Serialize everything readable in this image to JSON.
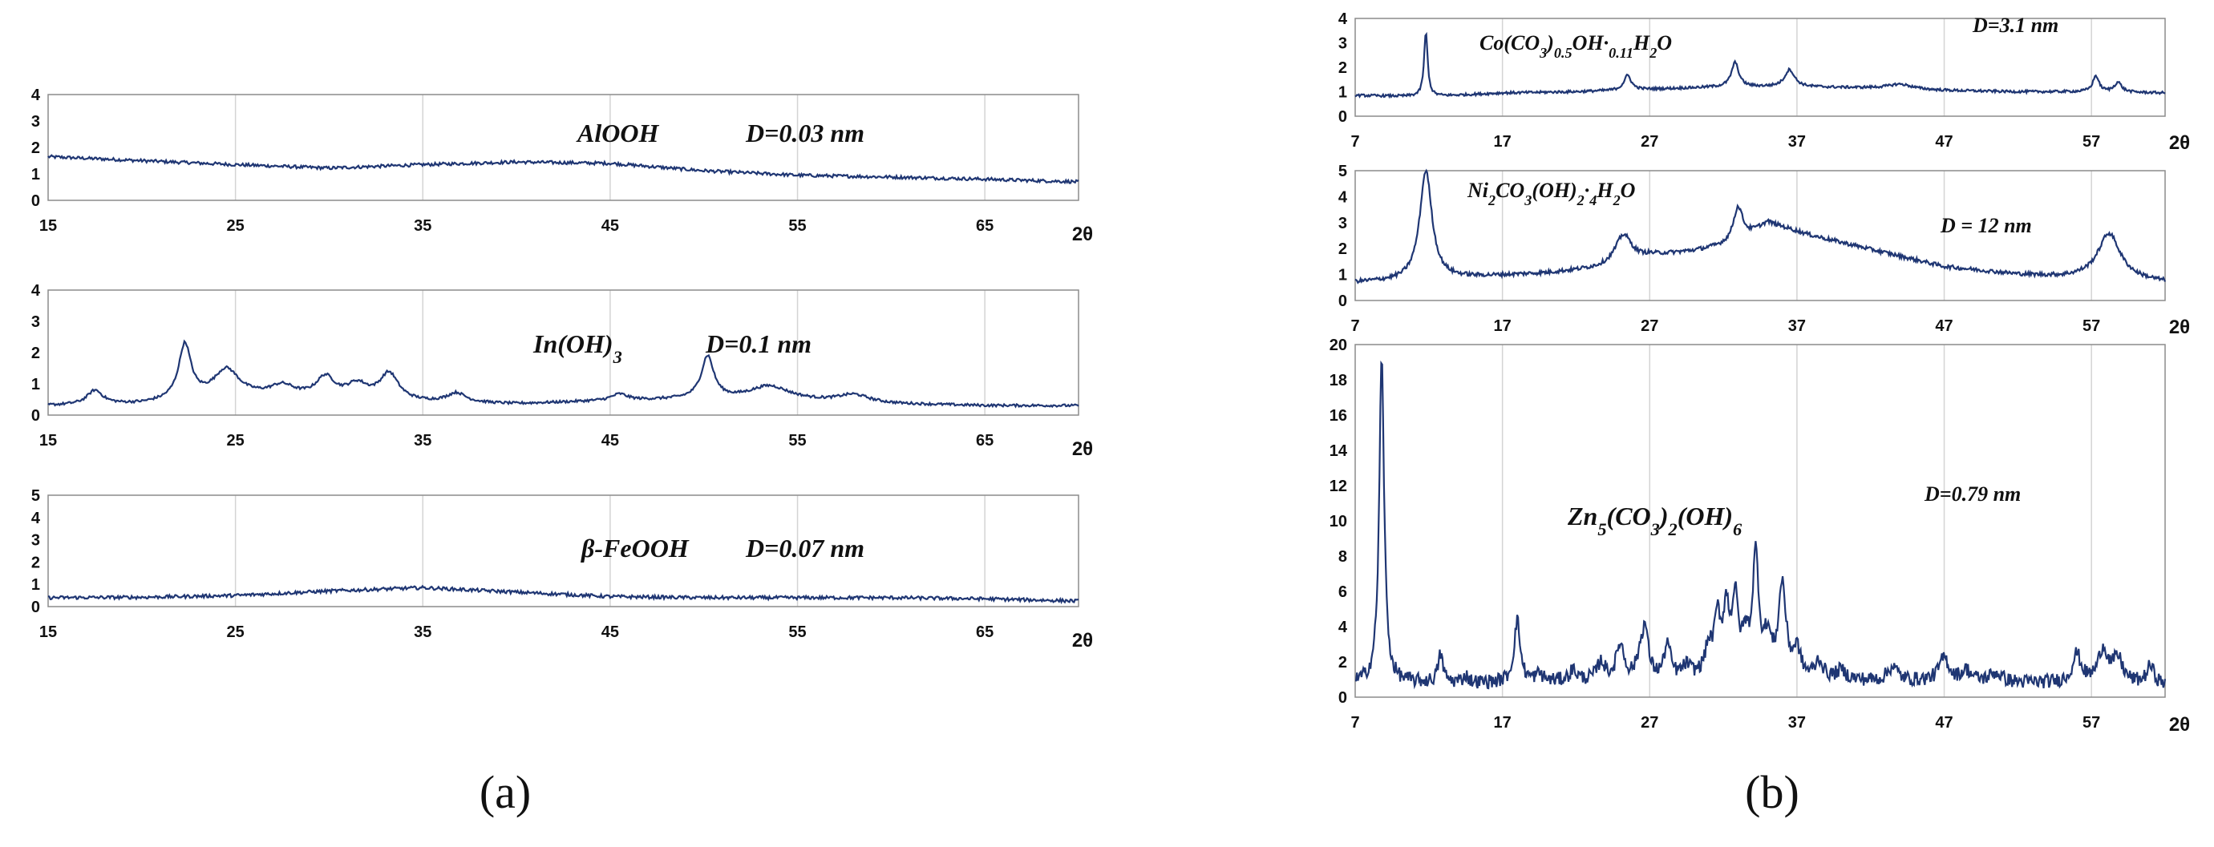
{
  "panel_labels": [
    "(a)",
    "(b)"
  ],
  "colors": {
    "series": "#1f3673",
    "grid": "#d4d4d4"
  },
  "chart_data": [
    {
      "type": "line",
      "panel": "(a)",
      "title": "AlOOH",
      "annotation": "D=0.03 nm",
      "xlabel": "2θ",
      "ylabel": "",
      "xlim": [
        15,
        70
      ],
      "ylim": [
        0,
        4
      ],
      "xticks": [
        15,
        25,
        35,
        45,
        55,
        65
      ],
      "yticks": [
        0,
        1,
        2,
        3,
        4
      ],
      "baseline": [
        [
          15,
          1.65
        ],
        [
          20,
          1.5
        ],
        [
          25,
          1.35
        ],
        [
          30,
          1.22
        ],
        [
          35,
          1.35
        ],
        [
          40,
          1.45
        ],
        [
          45,
          1.4
        ],
        [
          50,
          1.12
        ],
        [
          55,
          0.95
        ],
        [
          60,
          0.88
        ],
        [
          65,
          0.8
        ],
        [
          70,
          0.7
        ]
      ],
      "peaks": [],
      "noise": 0.06,
      "grid": "vertical"
    },
    {
      "type": "line",
      "panel": "(a)",
      "title": "In(OH)3",
      "annotation": "D=0.1 nm",
      "xlabel": "2θ",
      "ylabel": "",
      "xlim": [
        15,
        70
      ],
      "ylim": [
        0,
        4
      ],
      "xticks": [
        15,
        25,
        35,
        45,
        55,
        65
      ],
      "yticks": [
        0,
        1,
        2,
        3,
        4
      ],
      "baseline": [
        [
          15,
          0.3
        ],
        [
          20,
          0.35
        ],
        [
          25,
          0.6
        ],
        [
          30,
          0.5
        ],
        [
          35,
          0.4
        ],
        [
          40,
          0.35
        ],
        [
          45,
          0.45
        ],
        [
          50,
          0.5
        ],
        [
          55,
          0.45
        ],
        [
          60,
          0.35
        ],
        [
          65,
          0.3
        ],
        [
          70,
          0.3
        ]
      ],
      "peaks": [
        [
          17.5,
          0.45,
          0.5
        ],
        [
          22.3,
          1.75,
          0.4
        ],
        [
          24.5,
          0.85,
          0.8
        ],
        [
          27.5,
          0.35,
          0.8
        ],
        [
          29.8,
          0.65,
          0.6
        ],
        [
          31.5,
          0.45,
          0.7
        ],
        [
          33.2,
          0.85,
          0.6
        ],
        [
          36.8,
          0.3,
          0.6
        ],
        [
          45.5,
          0.2,
          0.5
        ],
        [
          50.2,
          1.35,
          0.4
        ],
        [
          53.5,
          0.45,
          1.3
        ],
        [
          58,
          0.25,
          1.0
        ]
      ],
      "noise": 0.04,
      "grid": "vertical"
    },
    {
      "type": "line",
      "panel": "(a)",
      "title": "β-FeOOH",
      "annotation": "D=0.07 nm",
      "xlabel": "2θ",
      "ylabel": "",
      "xlim": [
        15,
        70
      ],
      "ylim": [
        0,
        5
      ],
      "xticks": [
        15,
        25,
        35,
        45,
        55,
        65
      ],
      "yticks": [
        0,
        1,
        2,
        3,
        4,
        5
      ],
      "baseline": [
        [
          15,
          0.4
        ],
        [
          20,
          0.42
        ],
        [
          25,
          0.5
        ],
        [
          30,
          0.7
        ],
        [
          35,
          0.85
        ],
        [
          40,
          0.65
        ],
        [
          45,
          0.45
        ],
        [
          50,
          0.4
        ],
        [
          55,
          0.4
        ],
        [
          60,
          0.4
        ],
        [
          65,
          0.35
        ],
        [
          70,
          0.25
        ]
      ],
      "peaks": [],
      "noise": 0.06,
      "grid": "vertical"
    },
    {
      "type": "line",
      "panel": "(b)",
      "title": "Co(CO3)0.5OH·0.11H2O",
      "annotation": "D=3.1 nm",
      "xlabel": "2θ",
      "ylabel": "",
      "xlim": [
        7,
        62
      ],
      "ylim": [
        0,
        4
      ],
      "xticks": [
        7,
        17,
        27,
        37,
        47,
        57
      ],
      "yticks": [
        0,
        1,
        2,
        3,
        4
      ],
      "baseline": [
        [
          7,
          0.85
        ],
        [
          12,
          0.8
        ],
        [
          17,
          0.95
        ],
        [
          22,
          1.0
        ],
        [
          27,
          1.1
        ],
        [
          32,
          1.2
        ],
        [
          37,
          1.2
        ],
        [
          42,
          1.15
        ],
        [
          47,
          1.05
        ],
        [
          52,
          1.0
        ],
        [
          57,
          1.0
        ],
        [
          62,
          0.95
        ]
      ],
      "peaks": [
        [
          11.8,
          2.6,
          0.15
        ],
        [
          25.5,
          0.6,
          0.3
        ],
        [
          32.8,
          1.0,
          0.3
        ],
        [
          36.5,
          0.7,
          0.4
        ],
        [
          44,
          0.2,
          1.0
        ],
        [
          57.3,
          0.65,
          0.25
        ],
        [
          58.8,
          0.4,
          0.3
        ]
      ],
      "noise": 0.05,
      "grid": "vertical"
    },
    {
      "type": "line",
      "panel": "(b)",
      "title": "Ni2CO3(OH)2·4H2O",
      "annotation": "D = 12 nm",
      "xlabel": "2θ",
      "ylabel": "",
      "xlim": [
        7,
        62
      ],
      "ylim": [
        0,
        5
      ],
      "xticks": [
        7,
        17,
        27,
        37,
        47,
        57
      ],
      "yticks": [
        0,
        1,
        2,
        3,
        4,
        5
      ],
      "baseline": [
        [
          7,
          0.7
        ],
        [
          10,
          0.75
        ],
        [
          15,
          0.9
        ],
        [
          20,
          1.05
        ],
        [
          25,
          1.3
        ],
        [
          27,
          1.7
        ],
        [
          30,
          1.9
        ],
        [
          33,
          2.2
        ],
        [
          35,
          3.0
        ],
        [
          38,
          2.5
        ],
        [
          41,
          2.1
        ],
        [
          44,
          1.7
        ],
        [
          47,
          1.3
        ],
        [
          52,
          1.0
        ],
        [
          55,
          0.9
        ],
        [
          58,
          0.9
        ],
        [
          62,
          0.7
        ]
      ],
      "peaks": [
        [
          11.8,
          4.2,
          0.5
        ],
        [
          25.2,
          1.2,
          0.7
        ],
        [
          33.0,
          1.4,
          0.4
        ],
        [
          58.2,
          1.7,
          0.9
        ]
      ],
      "noise": 0.06,
      "grid": "vertical"
    },
    {
      "type": "line",
      "panel": "(b)",
      "title": "Zn5(CO3)2(OH)6",
      "annotation": "D=0.79 nm",
      "xlabel": "2θ",
      "ylabel": "",
      "xlim": [
        7,
        62
      ],
      "ylim": [
        0,
        20
      ],
      "xticks": [
        7,
        17,
        27,
        37,
        47,
        57
      ],
      "yticks": [
        0,
        2,
        4,
        6,
        8,
        10,
        12,
        14,
        16,
        18,
        20
      ],
      "baseline": [
        [
          7,
          0.8
        ],
        [
          12,
          0.8
        ],
        [
          17,
          0.8
        ],
        [
          22,
          0.9
        ],
        [
          27,
          1.0
        ],
        [
          32,
          1.1
        ],
        [
          37,
          1.0
        ],
        [
          42,
          0.9
        ],
        [
          47,
          0.9
        ],
        [
          52,
          0.8
        ],
        [
          57,
          0.8
        ],
        [
          62,
          0.7
        ]
      ],
      "peaks": [
        [
          8.8,
          18.4,
          0.2
        ],
        [
          12.8,
          1.6,
          0.2
        ],
        [
          14.5,
          0.4,
          0.2
        ],
        [
          18.0,
          3.5,
          0.25
        ],
        [
          19.5,
          0.4,
          0.3
        ],
        [
          21.8,
          0.6,
          0.3
        ],
        [
          23.7,
          1.0,
          0.3
        ],
        [
          25.0,
          2.0,
          0.3
        ],
        [
          26.4,
          1.2,
          0.3
        ],
        [
          26.7,
          2.4,
          0.25
        ],
        [
          28.2,
          1.9,
          0.25
        ],
        [
          29.5,
          0.6,
          0.3
        ],
        [
          31.0,
          1.5,
          0.3
        ],
        [
          31.6,
          3.0,
          0.25
        ],
        [
          32.2,
          3.5,
          0.25
        ],
        [
          32.8,
          4.0,
          0.25
        ],
        [
          33.5,
          1.8,
          0.3
        ],
        [
          34.2,
          6.6,
          0.25
        ],
        [
          35.0,
          2.0,
          0.3
        ],
        [
          36.0,
          5.2,
          0.3
        ],
        [
          37.0,
          1.5,
          0.3
        ],
        [
          38.5,
          1.0,
          0.3
        ],
        [
          40.0,
          0.5,
          0.4
        ],
        [
          43.5,
          0.8,
          0.4
        ],
        [
          47.0,
          1.3,
          0.4
        ],
        [
          48.5,
          0.6,
          0.4
        ],
        [
          50.5,
          0.5,
          0.5
        ],
        [
          56.0,
          1.6,
          0.35
        ],
        [
          57.8,
          1.9,
          0.4
        ],
        [
          58.8,
          1.3,
          0.4
        ],
        [
          61.0,
          1.0,
          0.3
        ]
      ],
      "noise": 0.08,
      "grid": "vertical"
    }
  ]
}
